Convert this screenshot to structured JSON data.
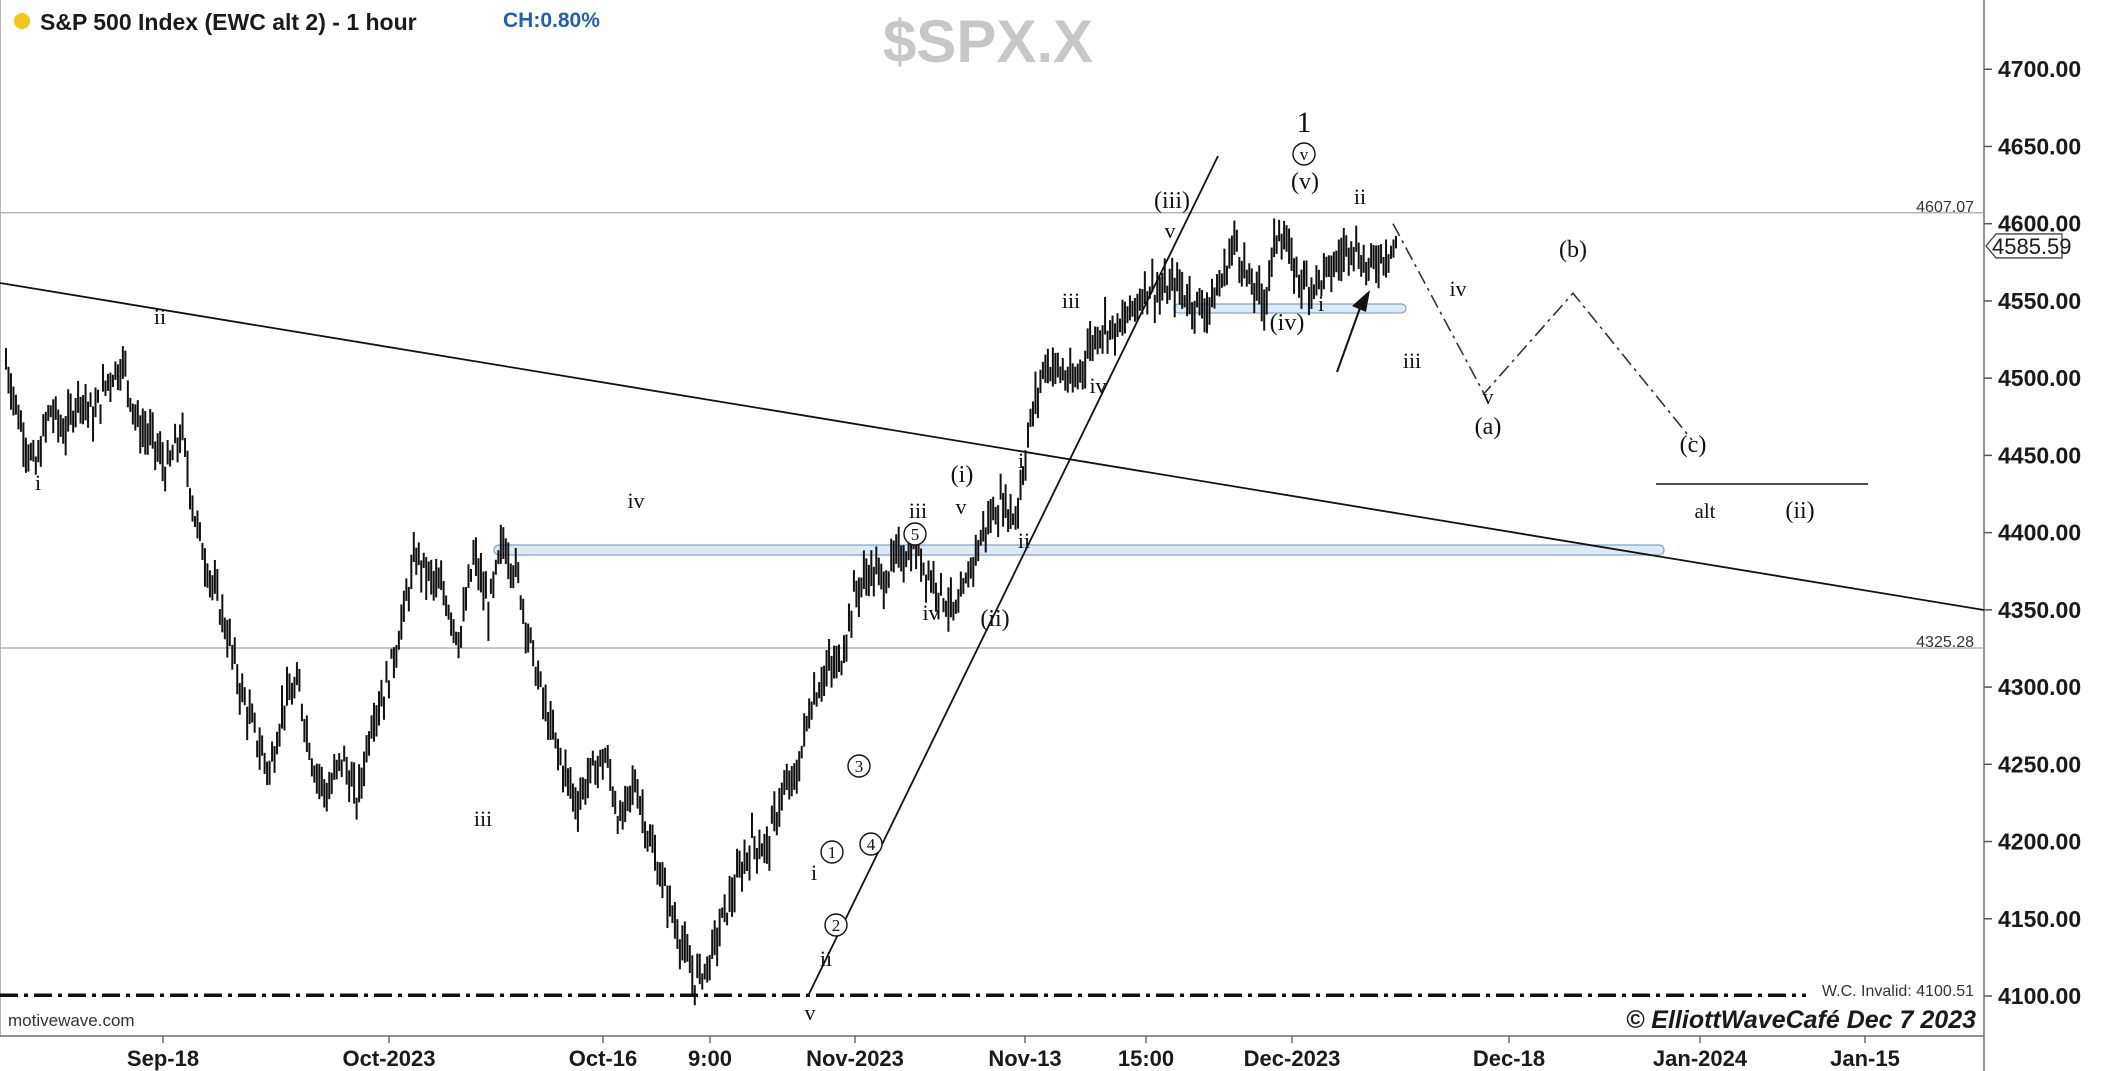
{
  "header": {
    "title": "S&P 500 Index (EWC alt 2) - 1 hour",
    "change": "CH:0.80%",
    "symbol": "$SPX.X",
    "status_dot_color": "#f5c518"
  },
  "footer": {
    "source": "motivewave.com",
    "copyright": "© ElliottWaveCafé Dec 7 2023"
  },
  "chart_data": {
    "type": "ohlc",
    "ylim": [
      4085,
      4735
    ],
    "yticks": [
      4100,
      4150,
      4200,
      4250,
      4300,
      4350,
      4400,
      4450,
      4500,
      4550,
      4600,
      4650,
      4700
    ],
    "ytick_labels": [
      "4100.00",
      "4150.00",
      "4200.00",
      "4250.00",
      "4300.00",
      "4350.00",
      "4400.00",
      "4450.00",
      "4500.00",
      "4550.00",
      "4600.00",
      "4650.00",
      "4700.00"
    ],
    "xticks": [
      "Sep-18",
      "Oct-2023",
      "Oct-16",
      "9:00",
      "Nov-2023",
      "Nov-13",
      "15:00",
      "Dec-2023",
      "Dec-18",
      "Jan-2024",
      "Jan-15"
    ],
    "last_price": "4585.59",
    "horizontal_lines": [
      {
        "value": 4607.07,
        "label": "4607.07"
      },
      {
        "value": 4325.28,
        "label": "4325.28"
      }
    ],
    "invalidation": {
      "value": 4100.51,
      "label": "W.C. Invalid: 4100.51"
    },
    "price_path": [
      4510,
      4470,
      4440,
      4480,
      4465,
      4490,
      4475,
      4500,
      4510,
      4470,
      4460,
      4440,
      4465,
      4405,
      4370,
      4340,
      4300,
      4270,
      4245,
      4290,
      4300,
      4250,
      4230,
      4255,
      4225,
      4280,
      4300,
      4340,
      4385,
      4370,
      4360,
      4330,
      4385,
      4350,
      4395,
      4370,
      4320,
      4280,
      4250,
      4225,
      4245,
      4255,
      4210,
      4240,
      4200,
      4170,
      4140,
      4110,
      4120,
      4150,
      4175,
      4200,
      4195,
      4230,
      4240,
      4290,
      4310,
      4315,
      4360,
      4375,
      4370,
      4385,
      4390,
      4375,
      4360,
      4345,
      4380,
      4405,
      4420,
      4410,
      4470,
      4510,
      4505,
      4495,
      4520,
      4535,
      4530,
      4545,
      4560,
      4555,
      4560,
      4550,
      4545,
      4560,
      4590,
      4560,
      4550,
      4600,
      4570,
      4560,
      4565,
      4575,
      4590,
      4570,
      4580,
      4585
    ],
    "wave_labels": [
      "i",
      "ii",
      "iii",
      "iv",
      "v",
      "(i)",
      "(ii)",
      "(iii)",
      "(iv)",
      "(v)",
      "(a)",
      "(b)",
      "(c)",
      "1",
      "v",
      "1",
      "2",
      "3",
      "4",
      "5",
      "alt",
      "(ii)"
    ],
    "projection_path": [
      [
        4600,
        "start"
      ],
      [
        4490,
        "(a)"
      ],
      [
        4555,
        "(b)"
      ],
      [
        4460,
        "(c)"
      ]
    ],
    "support_zones": [
      4388,
      4545
    ]
  },
  "annotations": [
    {
      "text": "i"
    },
    {
      "text": "ii"
    },
    {
      "text": "iii"
    },
    {
      "text": "iv"
    },
    {
      "text": "v"
    },
    {
      "text": "(i)"
    },
    {
      "text": "(ii)"
    },
    {
      "text": "(iii)"
    },
    {
      "text": "(iv)"
    },
    {
      "text": "(v)"
    },
    {
      "text": "(a)"
    },
    {
      "text": "(b)"
    },
    {
      "text": "(c)"
    },
    {
      "text": "1"
    },
    {
      "text": "alt"
    }
  ]
}
